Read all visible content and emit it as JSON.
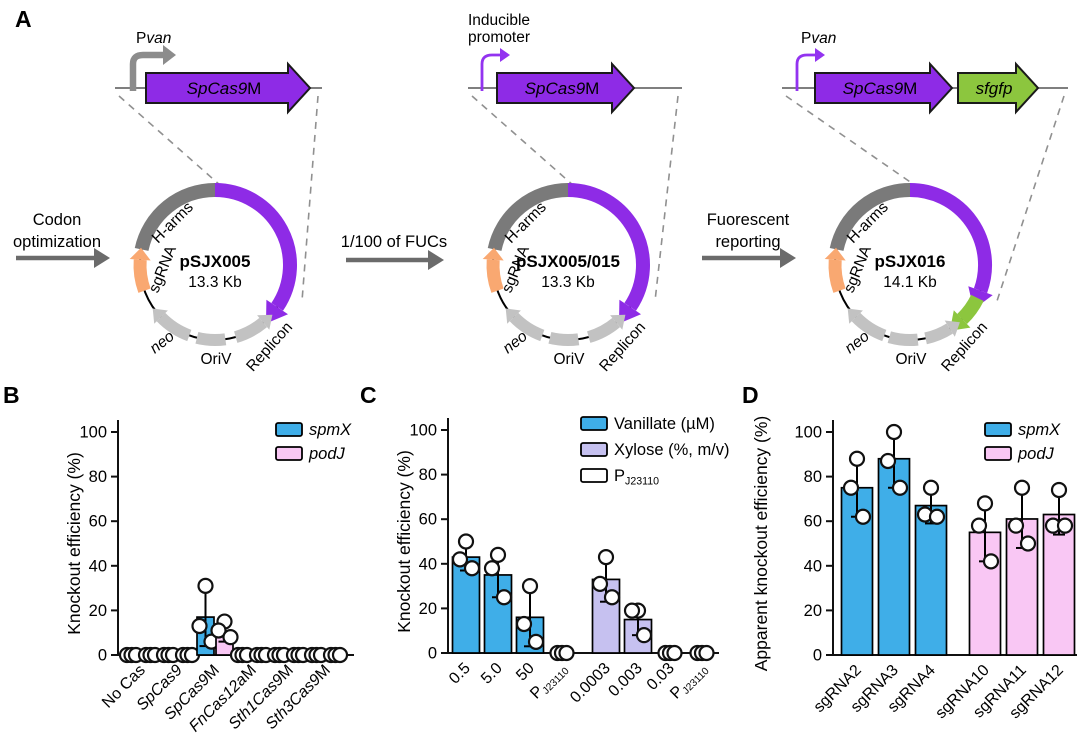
{
  "figure": {
    "panels": [
      "A",
      "B",
      "C",
      "D"
    ]
  },
  "panel_a": {
    "colors": {
      "blue_text": "#2222DD",
      "purple": "#8E2BE6",
      "green": "#8CC63E",
      "orange": "#F9A871",
      "dark_gray": "#7A7A7A",
      "light_gray": "#C2C2C2",
      "promoter_gray": "#8C8C8C",
      "step_arrow": "#6B6B6B"
    },
    "steps": [
      {
        "lines": [
          "Codon",
          "optimization"
        ]
      },
      {
        "lines": [
          "1/100 of FUCs"
        ]
      },
      {
        "lines": [
          "Fuorescent",
          "reporting"
        ]
      }
    ],
    "constructs": [
      {
        "promoter": {
          "lines": [
            [
              {
                "t": "P"
              },
              {
                "t": "van",
                "i": 1
              }
            ]
          ],
          "style": "gray-thick"
        },
        "genes": [
          {
            "runs": [
              {
                "t": "SpCas9",
                "i": 1
              },
              {
                "t": "M"
              }
            ],
            "color": "#8E2BE6"
          }
        ],
        "plasmid": {
          "name": "pSJX005",
          "size": "13.3 Kb",
          "has_gfp": false,
          "labels": {
            "sgrna": "sgRNA",
            "harms": "H-arms",
            "neo": "neo",
            "oriv": "OriV",
            "replicon": "Replicon"
          }
        }
      },
      {
        "promoter": {
          "lines": [
            [
              {
                "t": "Inducible"
              }
            ],
            [
              {
                "t": "promoter"
              }
            ]
          ],
          "style": "purple-thin"
        },
        "genes": [
          {
            "runs": [
              {
                "t": "SpCas9",
                "i": 1
              },
              {
                "t": "M"
              }
            ],
            "color": "#8E2BE6"
          }
        ],
        "plasmid": {
          "name": "pSJX005/015",
          "size": "13.3 Kb",
          "has_gfp": false,
          "labels": {
            "sgrna": "sgRNA",
            "harms": "H-arms",
            "neo": "neo",
            "oriv": "OriV",
            "replicon": "Replicon"
          }
        }
      },
      {
        "promoter": {
          "lines": [
            [
              {
                "t": "P"
              },
              {
                "t": "van",
                "i": 1
              }
            ]
          ],
          "style": "purple-thin"
        },
        "genes": [
          {
            "runs": [
              {
                "t": "SpCas9",
                "i": 1
              },
              {
                "t": "M"
              }
            ],
            "color": "#8E2BE6"
          },
          {
            "runs": [
              {
                "t": "sfgfp",
                "i": 1
              }
            ],
            "color": "#8CC63E"
          }
        ],
        "plasmid": {
          "name": "pSJX016",
          "size": "14.1 Kb",
          "has_gfp": true,
          "labels": {
            "sgrna": "sgRNA",
            "harms": "H-arms",
            "neo": "neo",
            "oriv": "OriV",
            "replicon": "Replicon"
          }
        }
      }
    ]
  },
  "chart_data": [
    {
      "id": "B",
      "type": "bar",
      "ylabel": "Knockout efficiency (%)",
      "ylim": [
        0,
        100
      ],
      "yticks": [
        0,
        20,
        40,
        60,
        80,
        100
      ],
      "legend": [
        {
          "color": "#3FAEE8",
          "runs": [
            {
              "t": "spmX",
              "i": 1
            }
          ]
        },
        {
          "color": "#F9C7F4",
          "runs": [
            {
              "t": "podJ",
              "i": 1
            }
          ]
        }
      ],
      "slots": [
        {
          "cat": [
            {
              "t": "No Cas"
            }
          ],
          "bars": [
            {
              "color": "#3FAEE8",
              "value": 0,
              "points": [
                0,
                0,
                0
              ]
            },
            {
              "color": "#F9C7F4",
              "value": 0,
              "points": [
                0,
                0,
                0
              ]
            }
          ]
        },
        {
          "cat": [
            {
              "t": "SpCas9",
              "i": 1
            }
          ],
          "bars": [
            {
              "color": "#3FAEE8",
              "value": 0,
              "points": [
                0,
                0,
                0
              ]
            },
            {
              "color": "#F9C7F4",
              "value": 0,
              "points": [
                0,
                0,
                0
              ]
            }
          ]
        },
        {
          "cat": [
            {
              "t": "SpCas9",
              "i": 1
            },
            {
              "t": "M"
            }
          ],
          "bars": [
            {
              "color": "#3FAEE8",
              "value": 17,
              "err": [
                4,
                31
              ],
              "points": [
                31,
                13,
                6
              ]
            },
            {
              "color": "#F9C7F4",
              "value": 10,
              "err": [
                6,
                15
              ],
              "points": [
                15,
                11,
                8
              ]
            }
          ]
        },
        {
          "cat": [
            {
              "t": "FnCas12a",
              "i": 1
            },
            {
              "t": "M"
            }
          ],
          "bars": [
            {
              "color": "#3FAEE8",
              "value": 0,
              "points": [
                0,
                0,
                0
              ]
            },
            {
              "color": "#F9C7F4",
              "value": 0,
              "points": [
                0,
                0,
                0
              ]
            }
          ]
        },
        {
          "cat": [
            {
              "t": "Sth1Cas9",
              "i": 1
            },
            {
              "t": "M"
            }
          ],
          "bars": [
            {
              "color": "#3FAEE8",
              "value": 0,
              "points": [
                0,
                0,
                0
              ]
            },
            {
              "color": "#F9C7F4",
              "value": 0,
              "points": [
                0,
                0,
                0
              ]
            }
          ]
        },
        {
          "cat": [
            {
              "t": "Sth3Cas9",
              "i": 1
            },
            {
              "t": "M"
            }
          ],
          "bars": [
            {
              "color": "#3FAEE8",
              "value": 0,
              "points": [
                0,
                0,
                0
              ]
            },
            {
              "color": "#F9C7F4",
              "value": 0,
              "points": [
                0,
                0,
                0
              ]
            }
          ]
        }
      ]
    },
    {
      "id": "C",
      "type": "bar",
      "ylabel": "Knockout efficiency (%)",
      "ylim": [
        0,
        100
      ],
      "yticks": [
        0,
        20,
        40,
        60,
        80,
        100
      ],
      "legend": [
        {
          "color": "#3FAEE8",
          "runs": [
            {
              "t": "Vanillate (µM)"
            }
          ]
        },
        {
          "color": "#C6C1F0",
          "runs": [
            {
              "t": "Xylose (%, m/v)"
            }
          ]
        },
        {
          "color": "#FFFFFF",
          "runs": [
            {
              "t": "P"
            },
            {
              "t": "J23110",
              "sub": 1
            }
          ]
        }
      ],
      "slots": [
        {
          "cat": [
            {
              "t": "0.5"
            }
          ],
          "bars": [
            {
              "color": "#3FAEE8",
              "value": 43,
              "err": [
                37,
                50
              ],
              "points": [
                50,
                42,
                38
              ]
            }
          ]
        },
        {
          "cat": [
            {
              "t": "5.0"
            }
          ],
          "bars": [
            {
              "color": "#3FAEE8",
              "value": 35,
              "err": [
                25,
                45
              ],
              "points": [
                44,
                38,
                25
              ]
            }
          ]
        },
        {
          "cat": [
            {
              "t": "50"
            }
          ],
          "bars": [
            {
              "color": "#3FAEE8",
              "value": 16,
              "err": [
                3,
                30
              ],
              "points": [
                30,
                13,
                5
              ]
            }
          ]
        },
        {
          "cat": [
            {
              "t": "P"
            },
            {
              "t": "J23110",
              "sub": 1
            }
          ],
          "bars": [
            {
              "color": "#FFFFFF",
              "value": 0,
              "points": [
                0,
                0,
                0
              ]
            }
          ]
        },
        {
          "cat": [
            {
              "t": "0.0003"
            }
          ],
          "gap_before": true,
          "bars": [
            {
              "color": "#C6C1F0",
              "value": 33,
              "err": [
                23,
                44
              ],
              "points": [
                43,
                31,
                25
              ]
            }
          ]
        },
        {
          "cat": [
            {
              "t": "0.003"
            }
          ],
          "bars": [
            {
              "color": "#C6C1F0",
              "value": 15,
              "err": [
                8,
                21
              ],
              "points": [
                19,
                19,
                8
              ]
            }
          ]
        },
        {
          "cat": [
            {
              "t": "0.03"
            }
          ],
          "bars": [
            {
              "color": "#C6C1F0",
              "value": 0,
              "points": [
                0,
                0,
                0
              ]
            }
          ]
        },
        {
          "cat": [
            {
              "t": "P"
            },
            {
              "t": "J23110",
              "sub": 1
            }
          ],
          "bars": [
            {
              "color": "#FFFFFF",
              "value": 0,
              "points": [
                0,
                0,
                0
              ]
            }
          ]
        }
      ]
    },
    {
      "id": "D",
      "type": "bar",
      "ylabel": "Apparent knockout efficiency (%)",
      "ylim": [
        0,
        100
      ],
      "yticks": [
        0,
        20,
        40,
        60,
        80,
        100
      ],
      "legend": [
        {
          "color": "#3FAEE8",
          "runs": [
            {
              "t": "spmX",
              "i": 1
            }
          ]
        },
        {
          "color": "#F9C7F4",
          "runs": [
            {
              "t": "podJ",
              "i": 1
            }
          ]
        }
      ],
      "slots": [
        {
          "cat": [
            {
              "t": "sgRNA2"
            }
          ],
          "bars": [
            {
              "color": "#3FAEE8",
              "value": 75,
              "err": [
                62,
                88
              ],
              "points": [
                88,
                75,
                62
              ]
            }
          ]
        },
        {
          "cat": [
            {
              "t": "sgRNA3"
            }
          ],
          "bars": [
            {
              "color": "#3FAEE8",
              "value": 88,
              "err": [
                75,
                100
              ],
              "points": [
                100,
                87,
                75
              ]
            }
          ]
        },
        {
          "cat": [
            {
              "t": "sgRNA4"
            }
          ],
          "bars": [
            {
              "color": "#3FAEE8",
              "value": 67,
              "err": [
                59,
                75
              ],
              "points": [
                75,
                63,
                62
              ]
            }
          ]
        },
        {
          "cat": [
            {
              "t": "sgRNA10"
            }
          ],
          "gap_before": true,
          "bars": [
            {
              "color": "#F9C7F4",
              "value": 55,
              "err": [
                42,
                68
              ],
              "points": [
                68,
                58,
                42
              ]
            }
          ]
        },
        {
          "cat": [
            {
              "t": "sgRNA11"
            }
          ],
          "bars": [
            {
              "color": "#F9C7F4",
              "value": 61,
              "err": [
                48,
                75
              ],
              "points": [
                75,
                58,
                50
              ]
            }
          ]
        },
        {
          "cat": [
            {
              "t": "sgRNA12"
            }
          ],
          "bars": [
            {
              "color": "#F9C7F4",
              "value": 63,
              "err": [
                54,
                74
              ],
              "points": [
                74,
                58,
                58
              ]
            }
          ]
        }
      ]
    }
  ]
}
